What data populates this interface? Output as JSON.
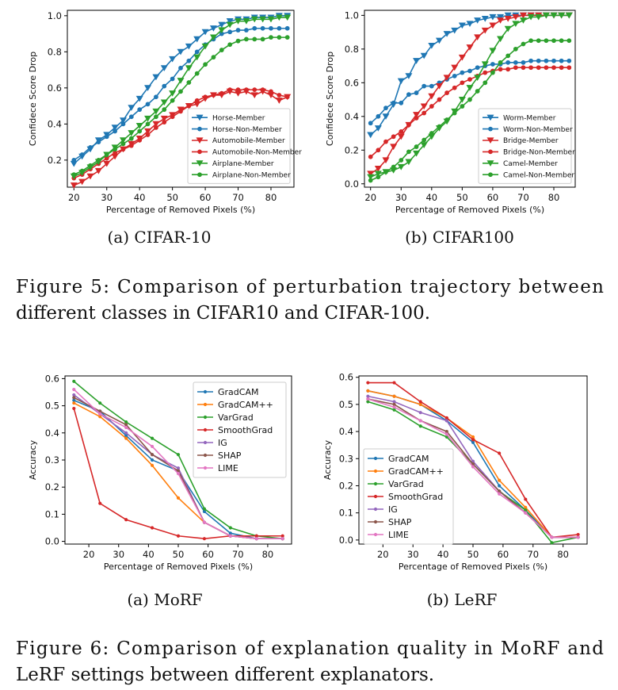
{
  "figure5": {
    "caption_line1": "Figure 5: Comparison of perturbation trajectory between",
    "caption_line2": "different classes in CIFAR10 and CIFAR-100."
  },
  "figure6": {
    "caption_line1": "Figure 6: Comparison of explanation quality in MoRF and",
    "caption_line2": "LeRF settings between different explanators."
  },
  "chart_data": [
    {
      "id": "cifar10",
      "type": "line",
      "subcaption": "(a)  CIFAR-10",
      "title": "",
      "xlabel": "Percentage of Removed Pixels (%)",
      "ylabel": "Confidece Score Drop",
      "xlim": [
        18,
        87
      ],
      "ylim": [
        0.05,
        1.03
      ],
      "xticks": [
        20,
        30,
        40,
        50,
        60,
        70,
        80
      ],
      "yticks": [
        0.2,
        0.4,
        0.6,
        0.8,
        1.0
      ],
      "ytick_labels": [
        "0.2",
        "0.4",
        "0.6",
        "0.8",
        "1.0"
      ],
      "grid": false,
      "legend": "bottom-right",
      "x": [
        20,
        22.5,
        25,
        27.5,
        30,
        32.5,
        35,
        37.5,
        40,
        42.5,
        45,
        47.5,
        50,
        52.5,
        55,
        57.5,
        60,
        62.5,
        65,
        67.5,
        70,
        72.5,
        75,
        77.5,
        80,
        82.5,
        85
      ],
      "series": [
        {
          "name": "Horse-Member",
          "color": "#1f77b4",
          "marker": "triangle-down",
          "values": [
            0.18,
            0.22,
            0.26,
            0.31,
            0.34,
            0.38,
            0.42,
            0.49,
            0.54,
            0.6,
            0.66,
            0.71,
            0.76,
            0.8,
            0.83,
            0.87,
            0.91,
            0.93,
            0.95,
            0.97,
            0.98,
            0.98,
            0.99,
            0.99,
            0.99,
            1.0,
            1.0
          ]
        },
        {
          "name": "Horse-Non-Member",
          "color": "#1f77b4",
          "marker": "circle",
          "values": [
            0.2,
            0.23,
            0.27,
            0.3,
            0.33,
            0.36,
            0.4,
            0.44,
            0.48,
            0.51,
            0.55,
            0.61,
            0.65,
            0.71,
            0.75,
            0.8,
            0.84,
            0.87,
            0.9,
            0.91,
            0.92,
            0.92,
            0.93,
            0.93,
            0.93,
            0.93,
            0.93
          ]
        },
        {
          "name": "Automobile-Member",
          "color": "#d62728",
          "marker": "triangle-down",
          "values": [
            0.06,
            0.08,
            0.11,
            0.14,
            0.18,
            0.22,
            0.26,
            0.29,
            0.32,
            0.36,
            0.4,
            0.43,
            0.45,
            0.48,
            0.5,
            0.51,
            0.54,
            0.56,
            0.56,
            0.58,
            0.57,
            0.58,
            0.56,
            0.58,
            0.56,
            0.53,
            0.55
          ]
        },
        {
          "name": "Automobile-Non-Member",
          "color": "#d62728",
          "marker": "circle",
          "values": [
            0.1,
            0.12,
            0.15,
            0.18,
            0.21,
            0.24,
            0.26,
            0.28,
            0.31,
            0.34,
            0.38,
            0.41,
            0.44,
            0.47,
            0.5,
            0.53,
            0.55,
            0.56,
            0.57,
            0.59,
            0.59,
            0.59,
            0.59,
            0.59,
            0.58,
            0.56,
            0.55
          ]
        },
        {
          "name": "Airplane-Member",
          "color": "#2ca02c",
          "marker": "triangle-down",
          "values": [
            0.11,
            0.13,
            0.16,
            0.19,
            0.23,
            0.27,
            0.31,
            0.35,
            0.39,
            0.43,
            0.47,
            0.52,
            0.57,
            0.64,
            0.71,
            0.77,
            0.83,
            0.88,
            0.92,
            0.95,
            0.97,
            0.97,
            0.98,
            0.98,
            0.98,
            0.99,
            0.99
          ]
        },
        {
          "name": "Airplane-Non-Member",
          "color": "#2ca02c",
          "marker": "circle",
          "values": [
            0.12,
            0.14,
            0.17,
            0.2,
            0.23,
            0.26,
            0.29,
            0.32,
            0.36,
            0.4,
            0.44,
            0.48,
            0.53,
            0.58,
            0.63,
            0.68,
            0.73,
            0.77,
            0.81,
            0.84,
            0.86,
            0.87,
            0.87,
            0.87,
            0.88,
            0.88,
            0.88
          ]
        }
      ]
    },
    {
      "id": "cifar100",
      "type": "line",
      "subcaption": "(b)  CIFAR100",
      "title": "",
      "xlabel": "Percentage of Removed Pixels (%)",
      "ylabel": "Confidece Score Drop",
      "xlim": [
        18,
        87
      ],
      "ylim": [
        -0.02,
        1.03
      ],
      "xticks": [
        20,
        30,
        40,
        50,
        60,
        70,
        80
      ],
      "yticks": [
        0.0,
        0.2,
        0.4,
        0.6,
        0.8,
        1.0
      ],
      "ytick_labels": [
        "0.0",
        "0.2",
        "0.4",
        "0.6",
        "0.8",
        "1.0"
      ],
      "grid": false,
      "legend": "bottom-right",
      "x": [
        20,
        22.5,
        25,
        27.5,
        30,
        32.5,
        35,
        37.5,
        40,
        42.5,
        45,
        47.5,
        50,
        52.5,
        55,
        57.5,
        60,
        62.5,
        65,
        67.5,
        70,
        72.5,
        75,
        77.5,
        80,
        82.5,
        85
      ],
      "series": [
        {
          "name": "Worm-Member",
          "color": "#1f77b4",
          "marker": "triangle-down",
          "values": [
            0.29,
            0.33,
            0.4,
            0.47,
            0.61,
            0.64,
            0.73,
            0.76,
            0.82,
            0.85,
            0.89,
            0.91,
            0.94,
            0.95,
            0.97,
            0.98,
            0.99,
            0.99,
            1.0,
            1.0,
            1.0,
            1.0,
            1.0,
            1.0,
            1.0,
            1.0,
            1.0
          ]
        },
        {
          "name": "Worm-Non-Member",
          "color": "#1f77b4",
          "marker": "circle",
          "values": [
            0.36,
            0.4,
            0.45,
            0.48,
            0.48,
            0.53,
            0.54,
            0.58,
            0.58,
            0.6,
            0.62,
            0.64,
            0.66,
            0.67,
            0.69,
            0.7,
            0.71,
            0.71,
            0.72,
            0.72,
            0.72,
            0.73,
            0.73,
            0.73,
            0.73,
            0.73,
            0.73
          ]
        },
        {
          "name": "Bridge-Member",
          "color": "#d62728",
          "marker": "triangle-down",
          "values": [
            0.06,
            0.09,
            0.14,
            0.22,
            0.28,
            0.35,
            0.41,
            0.46,
            0.52,
            0.58,
            0.63,
            0.69,
            0.75,
            0.81,
            0.87,
            0.91,
            0.94,
            0.97,
            0.98,
            0.99,
            1.0,
            1.0,
            1.0,
            1.0,
            1.0,
            1.0,
            1.0
          ]
        },
        {
          "name": "Bridge-Non-Member",
          "color": "#d62728",
          "marker": "circle",
          "values": [
            0.16,
            0.2,
            0.25,
            0.28,
            0.31,
            0.35,
            0.39,
            0.42,
            0.46,
            0.5,
            0.54,
            0.57,
            0.6,
            0.62,
            0.64,
            0.66,
            0.67,
            0.68,
            0.68,
            0.69,
            0.69,
            0.69,
            0.69,
            0.69,
            0.69,
            0.69,
            0.69
          ]
        },
        {
          "name": "Camel-Member",
          "color": "#2ca02c",
          "marker": "triangle-down",
          "values": [
            0.04,
            0.06,
            0.07,
            0.08,
            0.1,
            0.13,
            0.18,
            0.23,
            0.28,
            0.33,
            0.37,
            0.43,
            0.5,
            0.57,
            0.63,
            0.71,
            0.79,
            0.86,
            0.92,
            0.95,
            0.97,
            0.99,
            0.99,
            1.0,
            1.0,
            1.0,
            1.0
          ]
        },
        {
          "name": "Camel-Non-Member",
          "color": "#2ca02c",
          "marker": "circle",
          "values": [
            0.02,
            0.04,
            0.07,
            0.1,
            0.14,
            0.19,
            0.22,
            0.26,
            0.3,
            0.34,
            0.38,
            0.42,
            0.46,
            0.5,
            0.55,
            0.6,
            0.66,
            0.72,
            0.76,
            0.8,
            0.83,
            0.85,
            0.85,
            0.85,
            0.85,
            0.85,
            0.85
          ]
        }
      ]
    },
    {
      "id": "morf",
      "type": "line",
      "subcaption": "(a)  MoRF",
      "title": "",
      "xlabel": "Percentage of Removed Pixels (%)",
      "ylabel": "Accuracy",
      "xlim": [
        12,
        88
      ],
      "ylim": [
        -0.01,
        0.61
      ],
      "xticks": [
        20,
        30,
        40,
        50,
        60,
        70,
        80
      ],
      "yticks": [
        0.0,
        0.1,
        0.2,
        0.3,
        0.4,
        0.5,
        0.6
      ],
      "ytick_labels": [
        "0.0",
        "0.1",
        "0.2",
        "0.3",
        "0.4",
        "0.5",
        "0.6"
      ],
      "grid": false,
      "legend": "top-right",
      "x": [
        15,
        23.75,
        32.5,
        41.25,
        50,
        58.75,
        67.5,
        76.25,
        85
      ],
      "series": [
        {
          "name": "GradCAM",
          "color": "#1f77b4",
          "marker": "circle",
          "values": [
            0.52,
            0.48,
            0.39,
            0.3,
            0.26,
            0.11,
            0.03,
            0.01,
            0.01
          ]
        },
        {
          "name": "GradCAM++",
          "color": "#ff7f0e",
          "marker": "circle",
          "values": [
            0.51,
            0.46,
            0.38,
            0.28,
            0.16,
            0.07,
            0.02,
            0.01,
            0.01
          ]
        },
        {
          "name": "VarGrad",
          "color": "#2ca02c",
          "marker": "circle",
          "values": [
            0.59,
            0.51,
            0.44,
            0.38,
            0.32,
            0.12,
            0.05,
            0.02,
            0.01
          ]
        },
        {
          "name": "SmoothGrad",
          "color": "#d62728",
          "marker": "circle",
          "values": [
            0.49,
            0.14,
            0.08,
            0.05,
            0.02,
            0.01,
            0.02,
            0.02,
            0.02
          ]
        },
        {
          "name": "IG",
          "color": "#9467bd",
          "marker": "circle",
          "values": [
            0.54,
            0.47,
            0.4,
            0.32,
            0.27,
            0.07,
            0.02,
            0.01,
            0.01
          ]
        },
        {
          "name": "SHAP",
          "color": "#8c564b",
          "marker": "circle",
          "values": [
            0.53,
            0.48,
            0.43,
            0.32,
            0.26,
            0.07,
            0.02,
            0.01,
            0.01
          ]
        },
        {
          "name": "LIME",
          "color": "#e377c2",
          "marker": "circle",
          "values": [
            0.56,
            0.47,
            0.42,
            0.35,
            0.25,
            0.07,
            0.02,
            0.01,
            0.01
          ]
        }
      ]
    },
    {
      "id": "lerf",
      "type": "line",
      "subcaption": "(b)  LeRF",
      "title": "",
      "xlabel": "Percentage of Removed Pixels (%)",
      "ylabel": "Accuracy",
      "xlim": [
        12,
        88
      ],
      "ylim": [
        -0.015,
        0.605
      ],
      "xticks": [
        20,
        30,
        40,
        50,
        60,
        70,
        80
      ],
      "yticks": [
        0.0,
        0.1,
        0.2,
        0.3,
        0.4,
        0.5,
        0.6
      ],
      "ytick_labels": [
        "0.0",
        "0.1",
        "0.2",
        "0.3",
        "0.4",
        "0.5",
        "0.6"
      ],
      "grid": false,
      "legend": "bottom-left",
      "x": [
        15,
        23.75,
        32.5,
        41.25,
        50,
        58.75,
        67.5,
        76.25,
        85
      ],
      "series": [
        {
          "name": "GradCAM",
          "color": "#1f77b4",
          "marker": "circle",
          "values": [
            0.55,
            0.53,
            0.5,
            0.44,
            0.36,
            0.2,
            0.11,
            0.01,
            0.01
          ]
        },
        {
          "name": "GradCAM++",
          "color": "#ff7f0e",
          "marker": "circle",
          "values": [
            0.55,
            0.53,
            0.5,
            0.45,
            0.38,
            0.22,
            0.12,
            0.01,
            0.01
          ]
        },
        {
          "name": "VarGrad",
          "color": "#2ca02c",
          "marker": "circle",
          "values": [
            0.51,
            0.48,
            0.42,
            0.38,
            0.28,
            0.18,
            0.11,
            -0.01,
            0.01
          ]
        },
        {
          "name": "SmoothGrad",
          "color": "#d62728",
          "marker": "circle",
          "values": [
            0.58,
            0.58,
            0.51,
            0.45,
            0.37,
            0.32,
            0.15,
            0.01,
            0.02
          ]
        },
        {
          "name": "IG",
          "color": "#9467bd",
          "marker": "circle",
          "values": [
            0.53,
            0.51,
            0.47,
            0.44,
            0.29,
            0.18,
            0.1,
            0.01,
            0.01
          ]
        },
        {
          "name": "SHAP",
          "color": "#8c564b",
          "marker": "circle",
          "values": [
            0.52,
            0.5,
            0.44,
            0.4,
            0.28,
            0.18,
            0.1,
            0.01,
            0.01
          ]
        },
        {
          "name": "LIME",
          "color": "#e377c2",
          "marker": "circle",
          "values": [
            0.52,
            0.49,
            0.44,
            0.39,
            0.27,
            0.17,
            0.1,
            0.01,
            0.01
          ]
        }
      ]
    }
  ]
}
